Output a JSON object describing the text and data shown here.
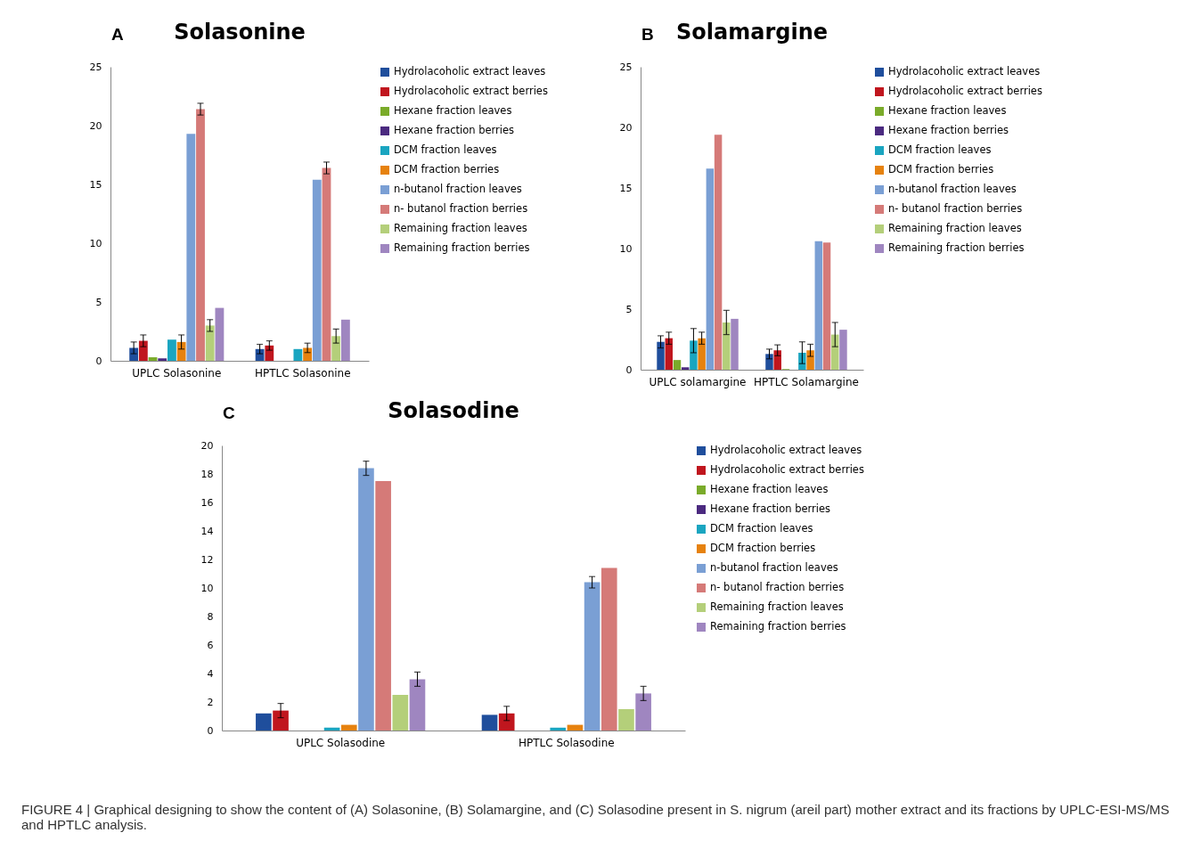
{
  "chart_data": [
    {
      "type": "bar",
      "title": "Solasonine",
      "annotations": [
        "A",
        "FIGURE 4 | Graphical designing to show the content of (A) Solasonine, (B) Solamargine, and (C) Solasodine present in S. nigrum (areil part) mother extract and its fractions by UPLC-ESI-MS/MS and HPTLC analysis."
      ],
      "categories": [
        "UPLC Solasonine",
        "HPTLC Solasonine"
      ],
      "ylim": [
        0,
        25
      ],
      "yticks": [
        0,
        5,
        10,
        15,
        20,
        25
      ],
      "grid": false,
      "legend": "right",
      "series": [
        {
          "name": "Hydrolacoholic extract leaves",
          "color": "#1f4e9c",
          "values": [
            1.1,
            1.0
          ],
          "errors": [
            0.5,
            0.4
          ]
        },
        {
          "name": "Hydrolacoholic extract berries",
          "color": "#c0161e",
          "values": [
            1.7,
            1.3
          ],
          "errors": [
            0.5,
            0.4
          ]
        },
        {
          "name": "Hexane fraction leaves",
          "color": "#7aab2a",
          "values": [
            0.3,
            0
          ]
        },
        {
          "name": "Hexane fraction berries",
          "color": "#4b2a80",
          "values": [
            0.2,
            0
          ]
        },
        {
          "name": "DCM fraction leaves",
          "color": "#1aa5c0",
          "values": [
            1.8,
            1.0
          ]
        },
        {
          "name": "DCM fraction berries",
          "color": "#e6820f",
          "values": [
            1.6,
            1.1
          ],
          "errors": [
            0.6,
            0.4
          ]
        },
        {
          "name": "n-butanol fraction leaves",
          "color": "#7a9fd4",
          "values": [
            19.3,
            15.4
          ]
        },
        {
          "name": "n- butanol fraction berries",
          "color": "#d57a78",
          "values": [
            21.4,
            16.4
          ],
          "errors": [
            0.5,
            0.5
          ]
        },
        {
          "name": "Remaining fraction leaves",
          "color": "#b4cf7a",
          "values": [
            3.0,
            2.1
          ],
          "errors": [
            0.5,
            0.6
          ]
        },
        {
          "name": "Remaining fraction berries",
          "color": "#9f86c0",
          "values": [
            4.5,
            3.5
          ]
        }
      ]
    },
    {
      "type": "bar",
      "title": "Solamargine",
      "annotations": [
        "B"
      ],
      "categories": [
        "UPLC solamargine",
        "HPTLC Solamargine"
      ],
      "ylim": [
        0,
        25
      ],
      "yticks": [
        0,
        5,
        10,
        15,
        20,
        25
      ],
      "grid": false,
      "legend": "right",
      "series": [
        {
          "name": "Hydrolacoholic extract leaves",
          "color": "#1f4e9c",
          "values": [
            2.3,
            1.3
          ],
          "errors": [
            0.5,
            0.4
          ]
        },
        {
          "name": "Hydrolacoholic extract berries",
          "color": "#c0161e",
          "values": [
            2.6,
            1.6
          ],
          "errors": [
            0.5,
            0.45
          ]
        },
        {
          "name": "Hexane fraction leaves",
          "color": "#7aab2a",
          "values": [
            0.8,
            0.05
          ]
        },
        {
          "name": "Hexane fraction berries",
          "color": "#4b2a80",
          "values": [
            0.2,
            0
          ]
        },
        {
          "name": "DCM fraction leaves",
          "color": "#1aa5c0",
          "values": [
            2.4,
            1.4
          ],
          "errors": [
            1.0,
            0.9
          ]
        },
        {
          "name": "DCM fraction berries",
          "color": "#e6820f",
          "values": [
            2.6,
            1.6
          ],
          "errors": [
            0.5,
            0.5
          ]
        },
        {
          "name": "n-butanol fraction leaves",
          "color": "#7a9fd4",
          "values": [
            16.6,
            10.6
          ]
        },
        {
          "name": "n- butanol fraction berries",
          "color": "#d57a78",
          "values": [
            19.4,
            10.5
          ]
        },
        {
          "name": "Remaining fraction leaves",
          "color": "#b4cf7a",
          "values": [
            3.9,
            2.9
          ],
          "errors": [
            1.0,
            1.0
          ]
        },
        {
          "name": "Remaining fraction berries",
          "color": "#9f86c0",
          "values": [
            4.2,
            3.3
          ]
        }
      ]
    },
    {
      "type": "bar",
      "title": "Solasodine",
      "annotations": [
        "C"
      ],
      "categories": [
        "UPLC Solasodine",
        "HPTLC Solasodine"
      ],
      "ylim": [
        0,
        20
      ],
      "yticks": [
        0,
        2,
        4,
        6,
        8,
        10,
        12,
        14,
        16,
        18,
        20
      ],
      "grid": false,
      "legend": "right",
      "series": [
        {
          "name": "Hydrolacoholic extract leaves",
          "color": "#1f4e9c",
          "values": [
            1.2,
            1.1
          ]
        },
        {
          "name": "Hydrolacoholic extract berries",
          "color": "#c0161e",
          "values": [
            1.4,
            1.2
          ],
          "errors": [
            0.5,
            0.5
          ]
        },
        {
          "name": "Hexane fraction leaves",
          "color": "#7aab2a",
          "values": [
            0,
            0
          ]
        },
        {
          "name": "Hexane fraction berries",
          "color": "#4b2a80",
          "values": [
            0,
            0
          ]
        },
        {
          "name": "DCM fraction leaves",
          "color": "#1aa5c0",
          "values": [
            0.2,
            0.2
          ]
        },
        {
          "name": "DCM fraction berries",
          "color": "#e6820f",
          "values": [
            0.4,
            0.4
          ]
        },
        {
          "name": "n-butanol fraction leaves",
          "color": "#7a9fd4",
          "values": [
            18.4,
            10.4
          ],
          "errors": [
            0.5,
            0.4
          ]
        },
        {
          "name": "n- butanol fraction berries",
          "color": "#d57a78",
          "values": [
            17.5,
            11.4
          ]
        },
        {
          "name": "Remaining fraction leaves",
          "color": "#b4cf7a",
          "values": [
            2.5,
            1.5
          ]
        },
        {
          "name": "Remaining fraction berries",
          "color": "#9f86c0",
          "values": [
            3.6,
            2.6
          ],
          "errors": [
            0.5,
            0.5
          ]
        }
      ]
    }
  ]
}
